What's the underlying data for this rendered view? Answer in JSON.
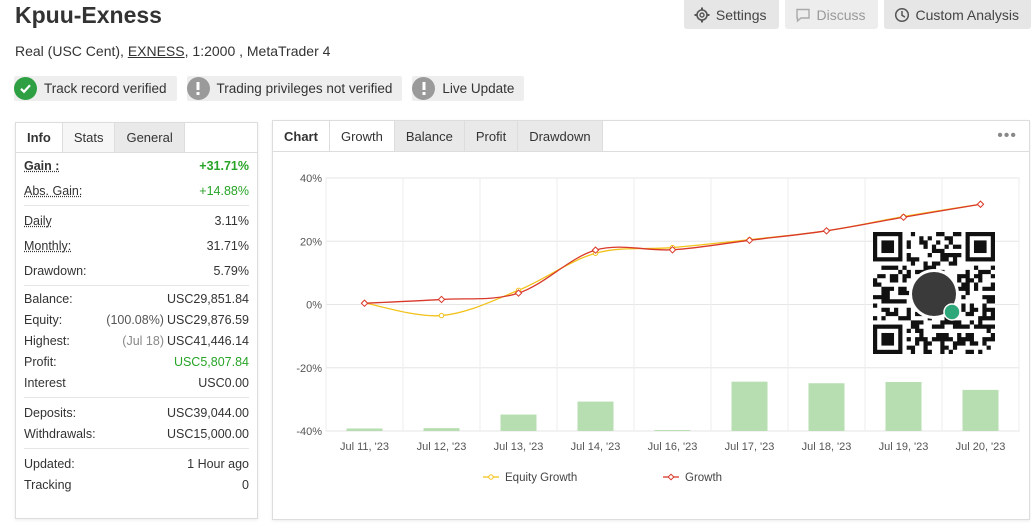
{
  "header": {
    "title": "Kpuu-Exness",
    "account_type": "Real (USC Cent),",
    "broker": "EXNESS",
    "leverage_platform": ", 1:2000 , MetaTrader 4"
  },
  "toolbar": {
    "settings": "Settings",
    "discuss": "Discuss",
    "custom_analysis": "Custom Analysis"
  },
  "badges": [
    {
      "label": "Track record verified",
      "status": "verified"
    },
    {
      "label": "Trading privileges not verified",
      "status": "not-verified"
    },
    {
      "label": "Live Update",
      "status": "info"
    }
  ],
  "left_tabs": [
    "Info",
    "Stats",
    "General"
  ],
  "stats": {
    "gain_label": "Gain :",
    "gain": "+31.71%",
    "abs_gain_label": "Abs. Gain:",
    "abs_gain": "+14.88%",
    "daily_label": "Daily",
    "daily": "3.11%",
    "monthly_label": "Monthly:",
    "monthly": "31.71%",
    "drawdown_label": "Drawdown:",
    "drawdown": "5.79%",
    "balance_label": "Balance:",
    "balance": "USC29,851.84",
    "equity_label": "Equity:",
    "equity_pct": "(100.08%)",
    "equity": "USC29,876.59",
    "highest_label": "Highest:",
    "highest_date": "(Jul 18)",
    "highest": "USC41,446.14",
    "profit_label": "Profit:",
    "profit": "USC5,807.84",
    "interest_label": "Interest",
    "interest": "USC0.00",
    "deposits_label": "Deposits:",
    "deposits": "USC39,044.00",
    "withdrawals_label": "Withdrawals:",
    "withdrawals": "USC15,000.00",
    "updated_label": "Updated:",
    "updated": "1 Hour ago",
    "tracking_label": "Tracking",
    "tracking": "0"
  },
  "chart_tabs": [
    "Chart",
    "Growth",
    "Balance",
    "Profit",
    "Drawdown"
  ],
  "colors": {
    "equity": "#f2c21b",
    "growth": "#d9382a",
    "bars": "#b7deb0",
    "verified": "#2ea043"
  },
  "chart_data": {
    "type": "line",
    "categories": [
      "Jul 11, '23",
      "Jul 12, '23",
      "Jul 13, '23",
      "Jul 14, '23",
      "Jul 16, '23",
      "Jul 17, '23",
      "Jul 18, '23",
      "Jul 19, '23",
      "Jul 20, '23"
    ],
    "yticks": [
      "40%",
      "20%",
      "0%",
      "-20%",
      "-40%"
    ],
    "ylim": [
      -40,
      40
    ],
    "series": [
      {
        "name": "Equity Growth",
        "values": [
          0.5,
          -3.5,
          4.5,
          16.2,
          18.0,
          20.5,
          23.3,
          27.8,
          31.7
        ]
      },
      {
        "name": "Growth",
        "values": [
          0.4,
          1.6,
          3.6,
          17.2,
          17.3,
          20.3,
          23.3,
          27.6,
          31.7
        ]
      }
    ],
    "bars": {
      "values": [
        -39.2,
        -39.1,
        -34.8,
        -30.7,
        -39.7,
        -24.4,
        -24.9,
        -24.5,
        -27.0
      ],
      "base": -40
    },
    "legend_position": "bottom"
  }
}
